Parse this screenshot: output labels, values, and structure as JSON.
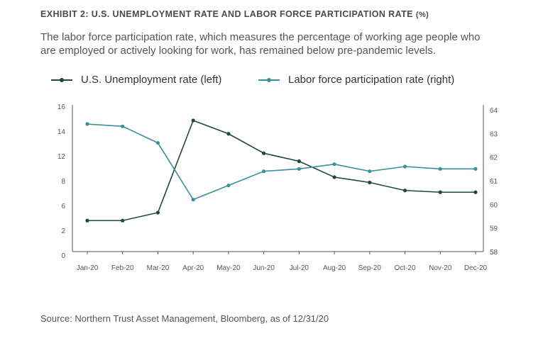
{
  "header": {
    "title": "EXHIBIT 2: U.S. UNEMPLOYMENT RATE AND LABOR FORCE PARTICIPATION RATE",
    "title_unit": "(%)",
    "subtitle": "The labor force participation rate, which measures the percentage of working age people who are employed or actively looking for work, has remained below pre-pandemic levels."
  },
  "footer": {
    "source": "Source: Northern Trust Asset Management, Bloomberg, as of 12/31/20"
  },
  "chart_data": {
    "type": "line",
    "categories": [
      "Jan-20",
      "Feb-20",
      "Mar-20",
      "Apr-20",
      "May-20",
      "Jun-20",
      "Jul-20",
      "Aug-20",
      "Sep-20",
      "Oct-20",
      "Nov-20",
      "Dec-20"
    ],
    "series": [
      {
        "name": "U.S. Unemployment rate (left)",
        "axis": "left",
        "color": "#1f4a3a",
        "values": [
          3.5,
          3.5,
          4.4,
          14.8,
          13.3,
          11.1,
          10.2,
          8.4,
          7.8,
          6.9,
          6.7,
          6.7
        ]
      },
      {
        "name": "Labor force participation rate (right)",
        "axis": "right",
        "color": "#3a8f9a",
        "values": [
          63.4,
          63.3,
          62.6,
          60.2,
          60.8,
          61.4,
          61.5,
          61.7,
          61.4,
          61.6,
          61.5,
          61.5
        ]
      }
    ],
    "y_left": {
      "ticks": [
        "16",
        "14",
        "12",
        "8",
        "6",
        "2",
        "0"
      ],
      "range": [
        0,
        16
      ]
    },
    "y_right": {
      "ticks": [
        "64",
        "63",
        "62",
        "61",
        "60",
        "59",
        "58"
      ],
      "range": [
        58,
        64
      ]
    },
    "grid": false,
    "legend_position": "top-left"
  }
}
